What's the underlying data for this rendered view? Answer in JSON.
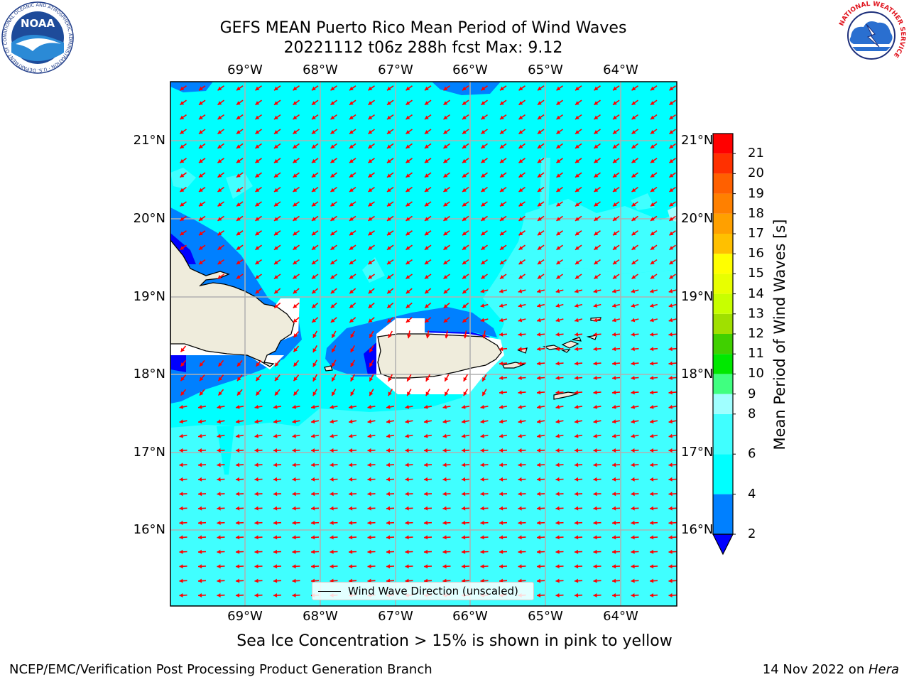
{
  "title_line1": "GEFS MEAN Puerto Rico Mean Period of Wind Waves",
  "title_line2": "20221112 t06z 288h fcst   Max: 9.12",
  "lon_ticks": [
    "69°W",
    "68°W",
    "67°W",
    "66°W",
    "65°W",
    "64°W"
  ],
  "lat_ticks": [
    "21°N",
    "20°N",
    "19°N",
    "18°N",
    "17°N",
    "16°N"
  ],
  "colorbar": {
    "label": "Mean Period of Wind Waves [s]",
    "ticks": [
      "21",
      "20",
      "19",
      "18",
      "17",
      "16",
      "15",
      "14",
      "13",
      "12",
      "11",
      "10",
      "9",
      "8",
      "6",
      "4",
      "2"
    ],
    "bands": [
      {
        "from": "2",
        "to": "4",
        "color": "#0080ff"
      },
      {
        "from": "4",
        "to": "6",
        "color": "#00ffff"
      },
      {
        "from": "6",
        "to": "8",
        "color": "#40ffff"
      },
      {
        "from": "8",
        "to": "9",
        "color": "#a0ffff"
      },
      {
        "from": "9",
        "to": "10",
        "color": "#40ff80"
      },
      {
        "from": "10",
        "to": "11",
        "color": "#00e800"
      },
      {
        "from": "11",
        "to": "12",
        "color": "#40d000"
      },
      {
        "from": "12",
        "to": "13",
        "color": "#a0e000"
      },
      {
        "from": "13",
        "to": "14",
        "color": "#c8ff00"
      },
      {
        "from": "14",
        "to": "15",
        "color": "#e8ff00"
      },
      {
        "from": "15",
        "to": "16",
        "color": "#ffff00"
      },
      {
        "from": "16",
        "to": "17",
        "color": "#ffc000"
      },
      {
        "from": "17",
        "to": "18",
        "color": "#ffa000"
      },
      {
        "from": "18",
        "to": "19",
        "color": "#ff8000"
      },
      {
        "from": "19",
        "to": "20",
        "color": "#ff6000"
      },
      {
        "from": "20",
        "to": "21",
        "color": "#ff3000"
      },
      {
        "from": "21",
        "to": "22",
        "color": "#ff0000"
      }
    ],
    "under_color": "#0000ff"
  },
  "legend_label": "Wind Wave Direction (unscaled)",
  "sea_ice_note": "Sea Ice Concentration > 15% is shown in pink to yellow",
  "footer_left": "NCEP/EMC/Verification Post Processing Product Generation Branch",
  "footer_right_date": "14 Nov 2022 on ",
  "footer_right_host": "Hera",
  "logos": {
    "noaa_text": "NOAA",
    "noaa_ring_text": "NATIONAL OCEANIC AND ATMOSPHERIC ADMINISTRATION · U.S. DEPARTMENT OF COMMERCE",
    "nws_ring_text": "NATIONAL WEATHER SERVICE"
  },
  "colors": {
    "land": "#efecdc",
    "arrow": "#ff0000",
    "sea_main": "#40ffff",
    "sea_north": "#00ffff",
    "shallow": "#0080ff"
  }
}
